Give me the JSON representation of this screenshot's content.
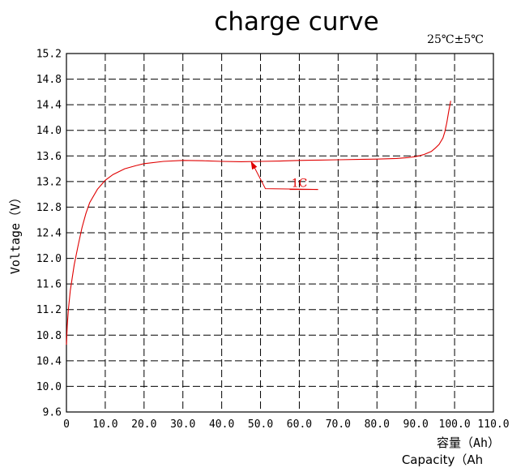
{
  "chart_data": {
    "type": "line",
    "title": "charge curve",
    "condition": "25℃±5℃",
    "ylabel": "Voltage（V）",
    "xlabel_cn": "容量（Ah）",
    "xlabel_en": "Capacity（Ah",
    "xlim": [
      0,
      110
    ],
    "ylim": [
      9.6,
      15.2
    ],
    "grid": true,
    "x_ticks": [
      "0",
      "10.0",
      "20.0",
      "30.0",
      "40.0",
      "50.0",
      "60.0",
      "70.0",
      "80.0",
      "90.0",
      "100.0",
      "110.0"
    ],
    "y_ticks": [
      "9.6",
      "10.0",
      "10.4",
      "10.8",
      "11.2",
      "11.6",
      "12.0",
      "12.4",
      "12.8",
      "13.2",
      "13.6",
      "14.0",
      "14.4",
      "14.8",
      "15.2"
    ],
    "series": [
      {
        "name": "1C",
        "color": "#e00000",
        "x": [
          0,
          0.2,
          0.5,
          1,
          2,
          3,
          4,
          5,
          6,
          8,
          10,
          12,
          15,
          18,
          20,
          25,
          30,
          35,
          40,
          45,
          50,
          55,
          60,
          65,
          70,
          75,
          80,
          85,
          88,
          90,
          92,
          94,
          95,
          96,
          97,
          97.5,
          98,
          98.5,
          99
        ],
        "y": [
          10.65,
          10.95,
          11.2,
          11.5,
          11.9,
          12.2,
          12.48,
          12.7,
          12.87,
          13.08,
          13.22,
          13.31,
          13.4,
          13.45,
          13.48,
          13.515,
          13.53,
          13.525,
          13.515,
          13.51,
          13.515,
          13.52,
          13.53,
          13.535,
          13.54,
          13.545,
          13.55,
          13.56,
          13.575,
          13.59,
          13.62,
          13.67,
          13.72,
          13.78,
          13.88,
          13.98,
          14.12,
          14.3,
          14.46
        ]
      }
    ],
    "annotations": [
      {
        "text": "1C",
        "series": "1C",
        "x": 47.5,
        "y": 13.52
      }
    ]
  }
}
